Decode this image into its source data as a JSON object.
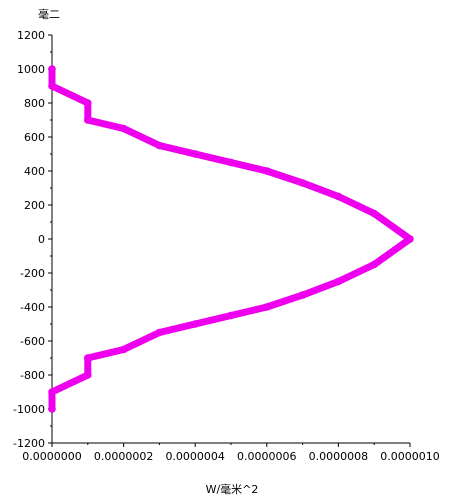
{
  "chart_data": {
    "type": "line",
    "title": "",
    "xlabel": "W/毫米^2",
    "ylabel": "毫二",
    "xlim": [
      0,
      1e-06
    ],
    "ylim": [
      -1200,
      1200
    ],
    "x_ticks": [
      "0.0000000",
      "0.0000002",
      "0.0000004",
      "0.0000006",
      "0.0000008",
      "0.0000010"
    ],
    "y_ticks": [
      "1200",
      "1000",
      "800",
      "600",
      "400",
      "200",
      "0",
      "-200",
      "-400",
      "-600",
      "-800",
      "-1000",
      "-1200"
    ],
    "grid": false,
    "legend": "none",
    "series_color": "#ee00ee",
    "series": [
      {
        "points": [
          {
            "x": 0.0,
            "y": 1000
          },
          {
            "x": 0.0,
            "y": 900
          },
          {
            "x": 1e-07,
            "y": 800
          },
          {
            "x": 1e-07,
            "y": 700
          },
          {
            "x": 2e-07,
            "y": 650
          },
          {
            "x": 3e-07,
            "y": 550
          },
          {
            "x": 4e-07,
            "y": 500
          },
          {
            "x": 5e-07,
            "y": 450
          },
          {
            "x": 6e-07,
            "y": 400
          },
          {
            "x": 7e-07,
            "y": 330
          },
          {
            "x": 8e-07,
            "y": 250
          },
          {
            "x": 9e-07,
            "y": 150
          },
          {
            "x": 1e-06,
            "y": 0
          },
          {
            "x": 9e-07,
            "y": -150
          },
          {
            "x": 8e-07,
            "y": -250
          },
          {
            "x": 7e-07,
            "y": -330
          },
          {
            "x": 6e-07,
            "y": -400
          },
          {
            "x": 5e-07,
            "y": -450
          },
          {
            "x": 4e-07,
            "y": -500
          },
          {
            "x": 3e-07,
            "y": -550
          },
          {
            "x": 2e-07,
            "y": -650
          },
          {
            "x": 1e-07,
            "y": -700
          },
          {
            "x": 1e-07,
            "y": -800
          },
          {
            "x": 0.0,
            "y": -900
          },
          {
            "x": 0.0,
            "y": -1000
          }
        ]
      }
    ]
  }
}
